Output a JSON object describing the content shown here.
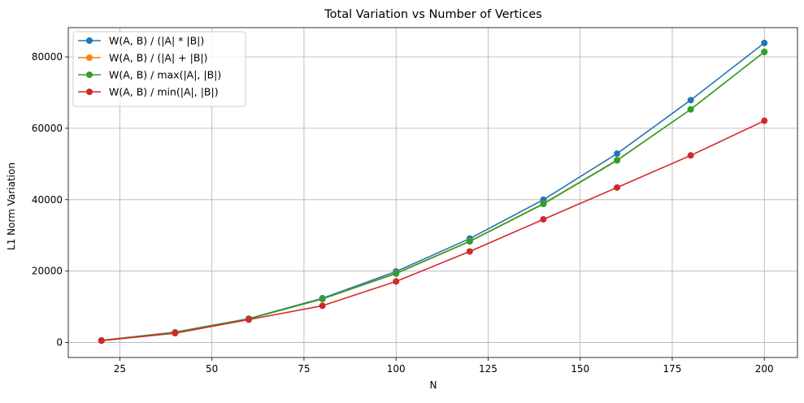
{
  "chart_data": {
    "type": "line",
    "title": "Total Variation vs Number of Vertices",
    "xlabel": "N",
    "ylabel": "L1 Norm Variation",
    "x": [
      20,
      40,
      60,
      80,
      100,
      120,
      140,
      160,
      180,
      200
    ],
    "xlim": [
      11,
      209
    ],
    "ylim": [
      -4200,
      88200
    ],
    "xticks": [
      25,
      50,
      75,
      100,
      125,
      150,
      175,
      200
    ],
    "yticks": [
      0,
      20000,
      40000,
      60000,
      80000
    ],
    "grid": true,
    "legend_position": "top-left",
    "markers": true,
    "series": [
      {
        "name": "W(A, B) / (|A| * |B|)",
        "color": "#1f77b4",
        "values": [
          600,
          2900,
          6700,
          12400,
          19900,
          29100,
          40000,
          52900,
          67900,
          83900
        ]
      },
      {
        "name": "W(A, B) / (|A| + |B|)",
        "color": "#ff7f0e",
        "values": [
          600,
          2850,
          6600,
          12200,
          19400,
          28400,
          38900,
          51100,
          65300,
          81400
        ]
      },
      {
        "name": "W(A, B) / max(|A|, |B|)",
        "color": "#2ca02c",
        "values": [
          600,
          2800,
          6600,
          12200,
          19300,
          28300,
          38800,
          51000,
          65300,
          81400
        ]
      },
      {
        "name": "W(A, B) / min(|A|, |B|)",
        "color": "#d62728",
        "values": [
          500,
          2600,
          6400,
          10300,
          17100,
          25500,
          34500,
          43400,
          52400,
          62100
        ]
      }
    ]
  }
}
